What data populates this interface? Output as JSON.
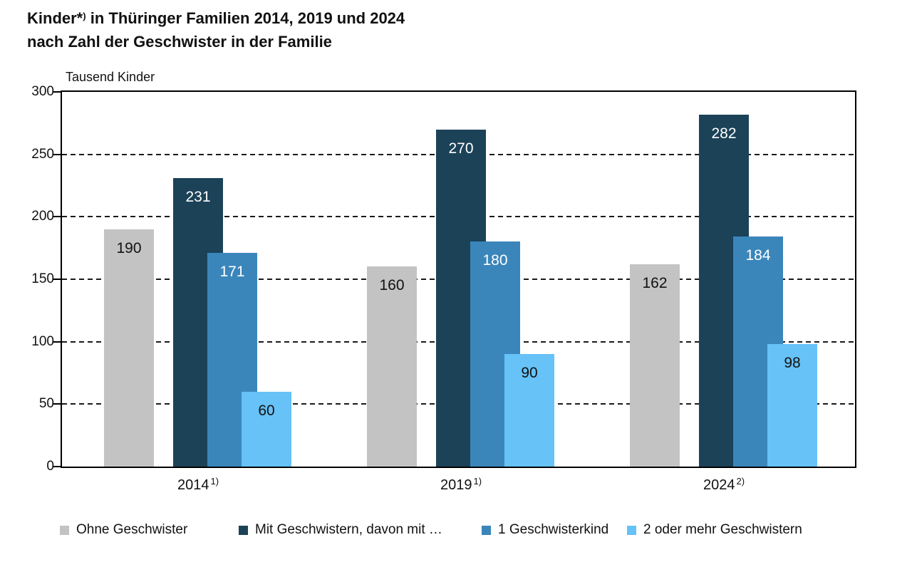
{
  "page": {
    "title_line1_prefix": "Kinder*",
    "title_line1_sup": ")",
    "title_line1_rest": " in Thüringer Familien 2014, 2019 und 2024",
    "title_line2": "nach Zahl der Geschwister in der Familie",
    "unit_label": "Tausend Kinder"
  },
  "chart_data": {
    "type": "bar",
    "title": "Kinder*) in Thüringer Familien 2014, 2019 und 2024 nach Zahl der Geschwister in der Familie",
    "ylabel": "Tausend Kinder",
    "xlabel": "",
    "categories": [
      {
        "label": "2014",
        "footnote": "1)"
      },
      {
        "label": "2019",
        "footnote": "1)"
      },
      {
        "label": "2024",
        "footnote": "2)"
      }
    ],
    "series": [
      {
        "name": "Ohne Geschwister",
        "values": [
          190,
          160,
          162
        ],
        "color": "#c3c3c3",
        "value_label_color": "#111111"
      },
      {
        "name": "Mit Geschwistern, davon mit …",
        "values": [
          231,
          270,
          282
        ],
        "color": "#1c4258",
        "value_label_color": "#ffffff"
      },
      {
        "name": "1 Geschwisterkind",
        "values": [
          171,
          180,
          184
        ],
        "color": "#3a86bb",
        "value_label_color": "#ffffff"
      },
      {
        "name": "2 oder mehr Geschwistern",
        "values": [
          60,
          90,
          98
        ],
        "color": "#66c2f7",
        "value_label_color": "#111111"
      }
    ],
    "y_axis": {
      "min": 0,
      "max": 300,
      "step": 50,
      "tick_labels": [
        "0",
        "50",
        "100",
        "150",
        "200",
        "250",
        "300"
      ]
    },
    "grid": "horizontal-dashed",
    "legend_position": "bottom",
    "layout_note": "sub-series bars (1 Geschwisterkind, 2 oder mehr) overlap the Mit-Geschwistern bar in a cascade"
  }
}
